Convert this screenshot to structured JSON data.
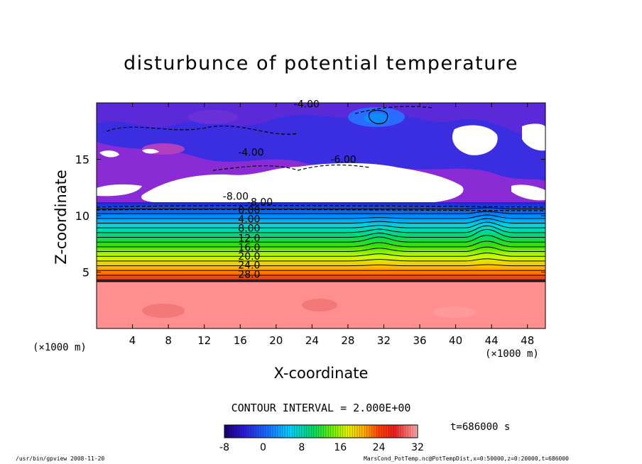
{
  "chart_data": {
    "type": "heatmap",
    "title": "disturbunce of potential temperature",
    "xlabel": "X-coordinate",
    "ylabel": "Z-coordinate",
    "x_unit_note": "(×1000 m)",
    "x_ticks": [
      4,
      8,
      12,
      16,
      20,
      24,
      28,
      32,
      36,
      40,
      44,
      48
    ],
    "y_ticks": [
      5,
      10,
      15
    ],
    "xlim": [
      0,
      50
    ],
    "ylim": [
      0,
      20
    ],
    "contour_interval": "CONTOUR INTERVAL = 2.000E+00",
    "contour_labels": [
      "-4.00",
      "-4.00",
      "-6.00",
      "-8.00",
      "-8.00",
      "0.00",
      "4.00",
      "8.00",
      "12.0",
      "16.0",
      "20.0",
      "24.0",
      "28.0"
    ],
    "colorbar": {
      "min": -8,
      "max": 32,
      "ticks": [
        -8,
        0,
        8,
        16,
        24,
        32
      ]
    },
    "time_label": "t=686000 s",
    "layers": [
      {
        "z_from": 0,
        "z_to": 4.2,
        "value": 32
      },
      {
        "z_from": 4.2,
        "z_to": 11,
        "value_bottom": 30,
        "value_top": 0
      },
      {
        "z_from": 11,
        "z_to": 20,
        "value": -6
      }
    ]
  },
  "footer": {
    "left": "/usr/bin/gpview  2008-11-20",
    "right": "MarsCond_PotTemp.nc@PotTempDist,x=0:50000,z=0:20000,t=686000"
  },
  "colors": {
    "warm_layer": "#ff8f8f",
    "cold_top": "#2e2ed8",
    "violet": "#8a2bd6",
    "white_gap": "#ffffff"
  }
}
